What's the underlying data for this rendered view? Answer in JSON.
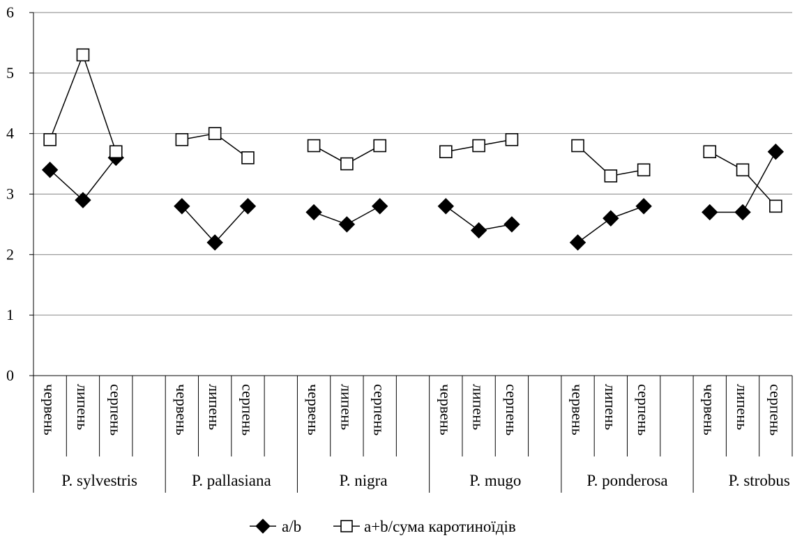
{
  "chart_data": {
    "type": "line",
    "title": "",
    "xlabel": "",
    "ylabel": "",
    "ylim": [
      0,
      6
    ],
    "yticks": [
      "0",
      "1",
      "2",
      "3",
      "4",
      "5",
      "6"
    ],
    "grid": true,
    "legend_position": "bottom",
    "groups": [
      {
        "name": "P. sylvestris",
        "months": [
          "червень",
          "липень",
          "серпень"
        ]
      },
      {
        "name": "P. pallasiana",
        "months": [
          "червень",
          "липень",
          "серпень"
        ]
      },
      {
        "name": "P. nigra",
        "months": [
          "червень",
          "липень",
          "серпень"
        ]
      },
      {
        "name": "P. mugo",
        "months": [
          "червень",
          "липень",
          "серпень"
        ]
      },
      {
        "name": "P. ponderosa",
        "months": [
          "червень",
          "липень",
          "серпень"
        ]
      },
      {
        "name": "P. strobus",
        "months": [
          "червень",
          "липень",
          "серпень"
        ]
      }
    ],
    "series": [
      {
        "name": "a/b",
        "marker": "filled-diamond",
        "values": [
          [
            3.4,
            2.9,
            3.6
          ],
          [
            2.8,
            2.2,
            2.8
          ],
          [
            2.7,
            2.5,
            2.8
          ],
          [
            2.8,
            2.4,
            2.5
          ],
          [
            2.2,
            2.6,
            2.8
          ],
          [
            2.7,
            2.7,
            3.7
          ]
        ]
      },
      {
        "name": "a+b/сума каротиноїдів",
        "marker": "open-square",
        "values": [
          [
            3.9,
            5.3,
            3.7
          ],
          [
            3.9,
            4.0,
            3.6
          ],
          [
            3.8,
            3.5,
            3.8
          ],
          [
            3.7,
            3.8,
            3.9
          ],
          [
            3.8,
            3.3,
            3.4
          ],
          [
            3.7,
            3.4,
            2.8
          ]
        ]
      }
    ],
    "colors": {
      "line": "#000000",
      "grid": "#868686",
      "marker_fill": "#000000",
      "open_marker_fill": "#ffffff"
    }
  }
}
